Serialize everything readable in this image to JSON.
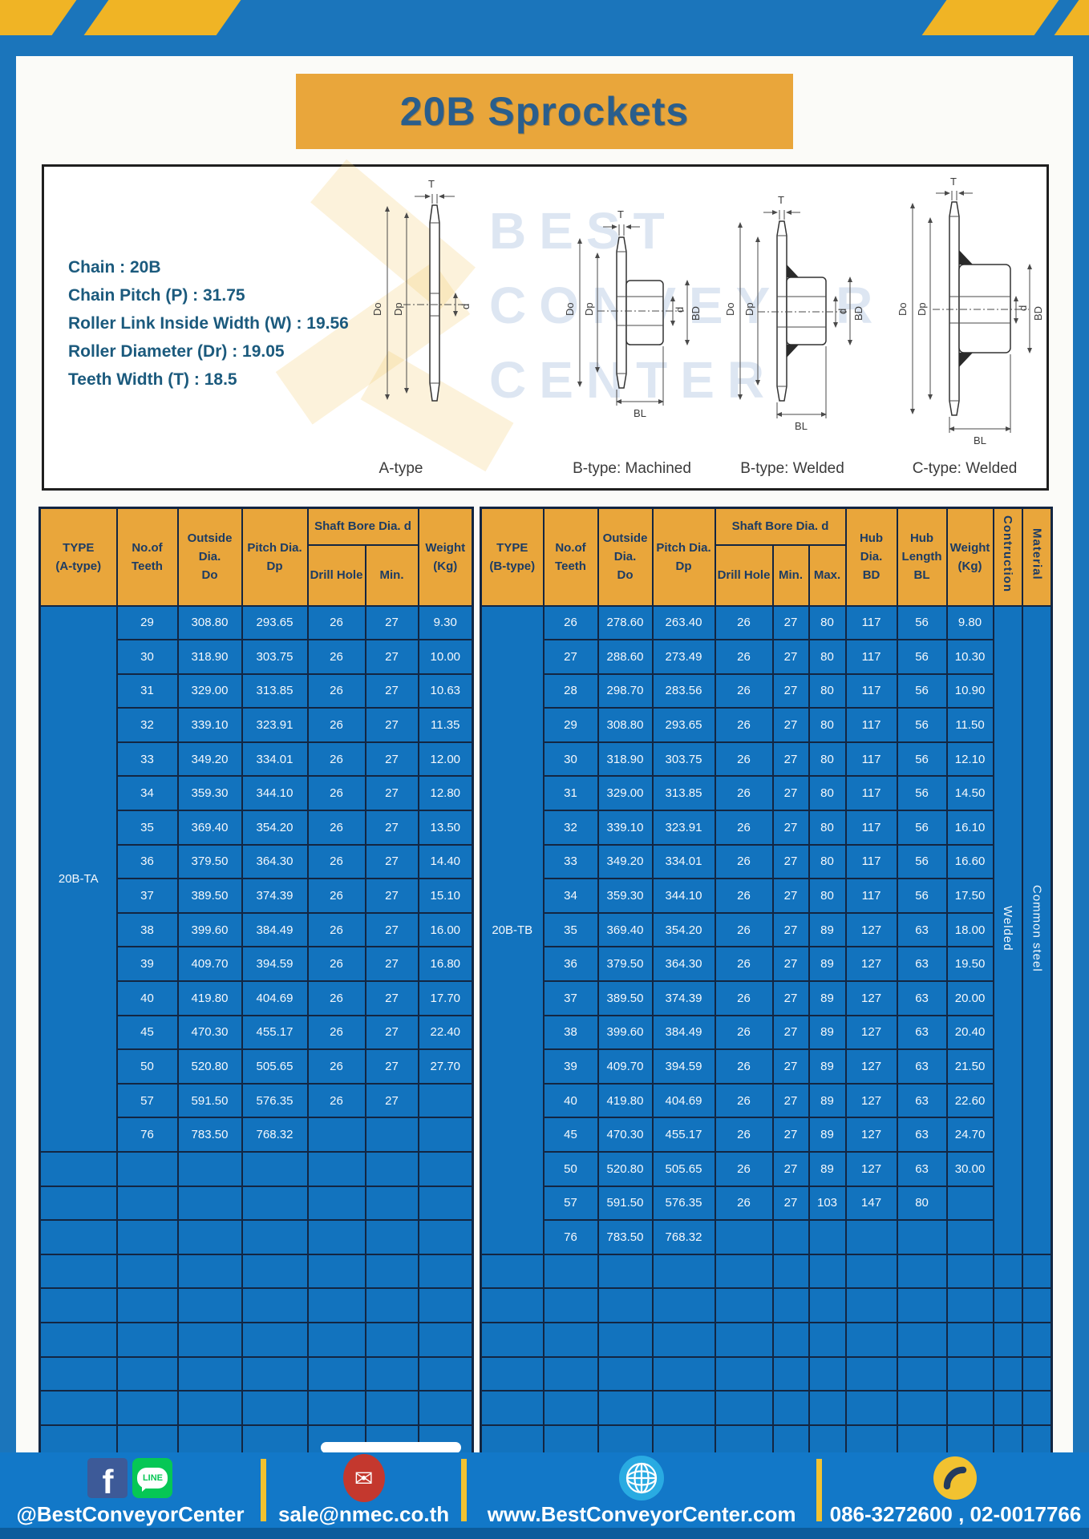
{
  "header": {
    "title": "20B Sprockets"
  },
  "specs": [
    "Chain : 20B",
    "Chain Pitch (P) : 31.75",
    "Roller Link Inside Width (W) : 19.56",
    "Roller Diameter (Dr) : 19.05",
    "Teeth Width (T) : 18.5"
  ],
  "diagram": {
    "types": [
      "A-type",
      "B-type: Machined",
      "B-type: Welded",
      "C-type: Welded"
    ],
    "dims": {
      "t": "T",
      "do": "Do",
      "dp": "Dp",
      "d": "d",
      "bd": "BD",
      "bl": "BL"
    },
    "watermark": "BEST\nCONVEYOR\nCENTER"
  },
  "table_a": {
    "type_header": "TYPE\n(A-type)",
    "teeth_header": "No.of\nTeeth",
    "outside_header": "Outside\nDia.\nDo",
    "pitch_header": "Pitch Dia.\nDp",
    "shaft_group_header": "Shaft Bore Dia. d",
    "drill_header": "Drill Hole",
    "min_header": "Min.",
    "weight_header": "Weight\n(Kg)",
    "type_label": "20B-TA",
    "empty_rows": 9,
    "rows": [
      [
        "29",
        "308.80",
        "293.65",
        "26",
        "27",
        "9.30"
      ],
      [
        "30",
        "318.90",
        "303.75",
        "26",
        "27",
        "10.00"
      ],
      [
        "31",
        "329.00",
        "313.85",
        "26",
        "27",
        "10.63"
      ],
      [
        "32",
        "339.10",
        "323.91",
        "26",
        "27",
        "11.35"
      ],
      [
        "33",
        "349.20",
        "334.01",
        "26",
        "27",
        "12.00"
      ],
      [
        "34",
        "359.30",
        "344.10",
        "26",
        "27",
        "12.80"
      ],
      [
        "35",
        "369.40",
        "354.20",
        "26",
        "27",
        "13.50"
      ],
      [
        "36",
        "379.50",
        "364.30",
        "26",
        "27",
        "14.40"
      ],
      [
        "37",
        "389.50",
        "374.39",
        "26",
        "27",
        "15.10"
      ],
      [
        "38",
        "399.60",
        "384.49",
        "26",
        "27",
        "16.00"
      ],
      [
        "39",
        "409.70",
        "394.59",
        "26",
        "27",
        "16.80"
      ],
      [
        "40",
        "419.80",
        "404.69",
        "26",
        "27",
        "17.70"
      ],
      [
        "45",
        "470.30",
        "455.17",
        "26",
        "27",
        "22.40"
      ],
      [
        "50",
        "520.80",
        "505.65",
        "26",
        "27",
        "27.70"
      ],
      [
        "57",
        "591.50",
        "576.35",
        "26",
        "27",
        ""
      ],
      [
        "76",
        "783.50",
        "768.32",
        "",
        "",
        ""
      ]
    ]
  },
  "table_b": {
    "type_header": "TYPE\n(B-type)",
    "teeth_header": "No.of\nTeeth",
    "outside_header": "Outside\nDia.\nDo",
    "pitch_header": "Pitch Dia.\nDp",
    "shaft_group_header": "Shaft Bore Dia. d",
    "drill_header": "Drill Hole",
    "min_header": "Min.",
    "max_header": "Max.",
    "hub_dia_header": "Hub Dia.\nBD",
    "hub_len_header": "Hub\nLength\nBL",
    "weight_header": "Weight\n(Kg)",
    "construction_header": "Contruction",
    "material_header": "Material",
    "type_label": "20B-TB",
    "construction_value": "Welded",
    "material_value": "Common  steel",
    "empty_rows": 6,
    "rows": [
      [
        "26",
        "278.60",
        "263.40",
        "26",
        "27",
        "80",
        "117",
        "56",
        "9.80"
      ],
      [
        "27",
        "288.60",
        "273.49",
        "26",
        "27",
        "80",
        "117",
        "56",
        "10.30"
      ],
      [
        "28",
        "298.70",
        "283.56",
        "26",
        "27",
        "80",
        "117",
        "56",
        "10.90"
      ],
      [
        "29",
        "308.80",
        "293.65",
        "26",
        "27",
        "80",
        "117",
        "56",
        "11.50"
      ],
      [
        "30",
        "318.90",
        "303.75",
        "26",
        "27",
        "80",
        "117",
        "56",
        "12.10"
      ],
      [
        "31",
        "329.00",
        "313.85",
        "26",
        "27",
        "80",
        "117",
        "56",
        "14.50"
      ],
      [
        "32",
        "339.10",
        "323.91",
        "26",
        "27",
        "80",
        "117",
        "56",
        "16.10"
      ],
      [
        "33",
        "349.20",
        "334.01",
        "26",
        "27",
        "80",
        "117",
        "56",
        "16.60"
      ],
      [
        "34",
        "359.30",
        "344.10",
        "26",
        "27",
        "80",
        "117",
        "56",
        "17.50"
      ],
      [
        "35",
        "369.40",
        "354.20",
        "26",
        "27",
        "89",
        "127",
        "63",
        "18.00"
      ],
      [
        "36",
        "379.50",
        "364.30",
        "26",
        "27",
        "89",
        "127",
        "63",
        "19.50"
      ],
      [
        "37",
        "389.50",
        "374.39",
        "26",
        "27",
        "89",
        "127",
        "63",
        "20.00"
      ],
      [
        "38",
        "399.60",
        "384.49",
        "26",
        "27",
        "89",
        "127",
        "63",
        "20.40"
      ],
      [
        "39",
        "409.70",
        "394.59",
        "26",
        "27",
        "89",
        "127",
        "63",
        "21.50"
      ],
      [
        "40",
        "419.80",
        "404.69",
        "26",
        "27",
        "89",
        "127",
        "63",
        "22.60"
      ],
      [
        "45",
        "470.30",
        "455.17",
        "26",
        "27",
        "89",
        "127",
        "63",
        "24.70"
      ],
      [
        "50",
        "520.80",
        "505.65",
        "26",
        "27",
        "89",
        "127",
        "63",
        "30.00"
      ],
      [
        "57",
        "591.50",
        "576.35",
        "26",
        "27",
        "103",
        "147",
        "80",
        ""
      ],
      [
        "76",
        "783.50",
        "768.32",
        "",
        "",
        "",
        "",
        "",
        ""
      ]
    ]
  },
  "footer": {
    "facebook_label": "f",
    "line_label": "LINE",
    "mail_glyph": "✉",
    "items": [
      {
        "text": "@BestConveyorCenter"
      },
      {
        "text": "sale@nmec.co.th"
      },
      {
        "text": "www.BestConveyorCenter.com"
      },
      {
        "text": "086-3272600 , 02-0017766"
      }
    ]
  },
  "colors": {
    "frame_blue": "#1B75BB",
    "table_blue": "#1273BE",
    "header_yellow": "#E9A63B",
    "stripe_yellow": "#F0B425",
    "border_navy": "#132642",
    "footer_blue": "#1278C8",
    "title_text": "#2A5E8C",
    "spec_text": "#1B5A7D"
  }
}
